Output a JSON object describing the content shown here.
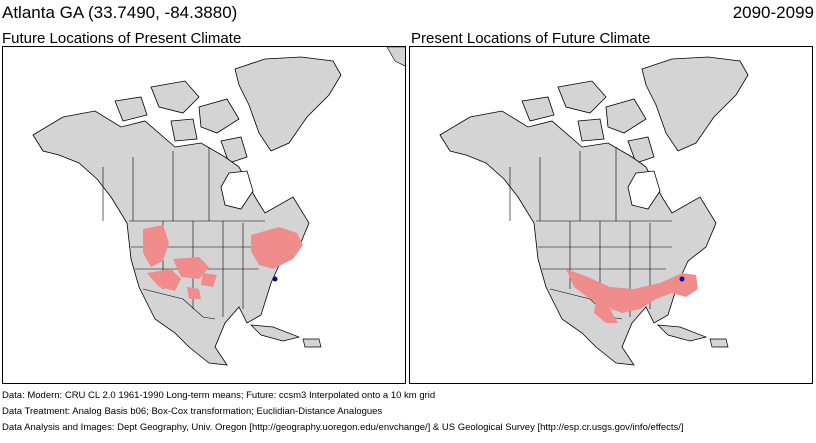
{
  "header": {
    "location": "Atlanta GA  (33.7490, -84.3880)",
    "period": "2090-2099"
  },
  "panels": [
    {
      "title": "Future Locations of Present Climate"
    },
    {
      "title": "Present Locations of Future Climate"
    }
  ],
  "footer": {
    "line1": "Data:  Modern: CRU CL 2.0 1961-1990 Long-term means; Future: ccsm3 Interpolated onto a 10 km grid",
    "line2": "Data Treatment:  Analog Basis b06; Box-Cox transformation; Euclidian-Distance Analogues",
    "line3": "Data Analysis and Images:  Dept Geography, Univ. Oregon [http://geography.uoregon.edu/envchange/] & US Geological Survey [http://esp.cr.usgs.gov/info/effects/]"
  },
  "colors": {
    "land": "#d4d4d4",
    "water": "#ffffff",
    "analog_region": "#f08c8c",
    "target_marker": "#0000aa",
    "border": "#000000"
  }
}
